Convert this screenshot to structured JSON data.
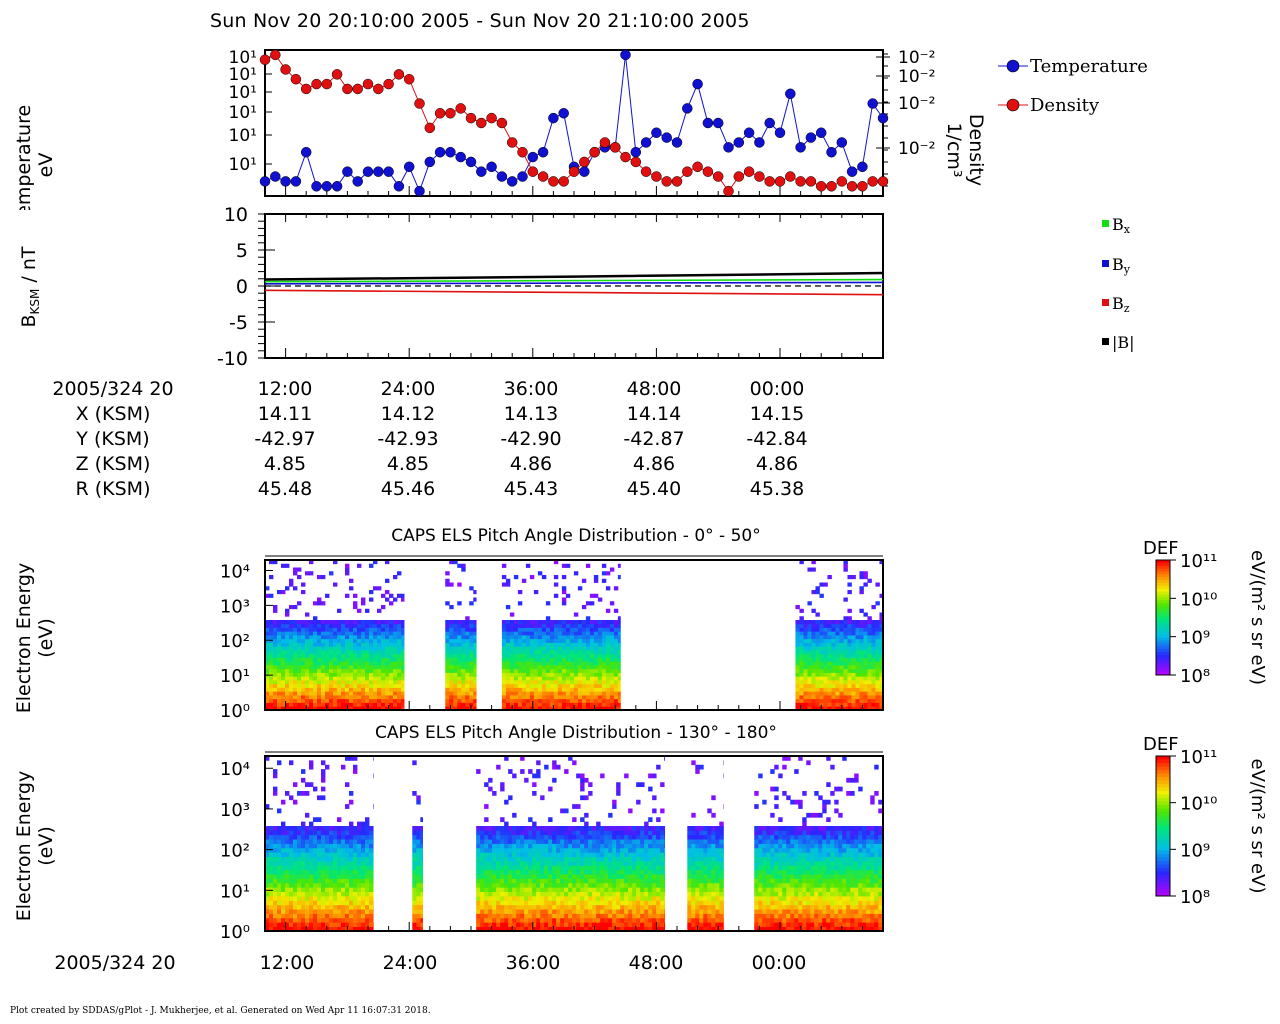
{
  "header": {
    "title": "Sun Nov 20 20:10:00 2005 - Sun Nov 20 21:10:00 2005"
  },
  "panels": {
    "moments": {
      "ylabel_line1": "Temperature",
      "ylabel_line2": "eV",
      "y2label_line1": "Density",
      "y2label_line2": "1/cm³",
      "left_ticks": [
        "10¹",
        "10¹",
        "10¹",
        "10¹",
        "10¹",
        "10¹"
      ],
      "right_ticks": [
        "10⁻²",
        "10⁻²",
        "10⁻²",
        "10⁻²"
      ],
      "legend": [
        {
          "label": "Temperature",
          "color": "#1010d0"
        },
        {
          "label": "Density",
          "color": "#e01010"
        }
      ]
    },
    "magnetic": {
      "ylabel": "B",
      "ylabel_sub": "KSM",
      "ylabel_unit": " / nT",
      "ticks": [
        "10",
        "5",
        "0",
        "-5",
        "-10"
      ],
      "legend": [
        {
          "label": "B",
          "sub": "x",
          "color": "#10e010"
        },
        {
          "label": "B",
          "sub": "y",
          "color": "#1010d0"
        },
        {
          "label": "B",
          "sub": "z",
          "color": "#e01010"
        },
        {
          "label": "|B|",
          "sub": "",
          "color": "#000000"
        }
      ]
    },
    "spec1": {
      "title": "CAPS ELS Pitch Angle Distribution - 0° - 50°",
      "ylabel_line1": "Electron Energy",
      "ylabel_line2": "(eV)",
      "ticks": [
        "10⁴",
        "10³",
        "10²",
        "10¹",
        "10⁰"
      ],
      "cbar_title": "DEF",
      "cbar_unit": "eV/(m² s sr eV)",
      "cbar_ticks": [
        "10¹¹",
        "10¹⁰",
        "10⁹",
        "10⁸"
      ]
    },
    "spec2": {
      "title": "CAPS ELS Pitch Angle Distribution - 130° - 180°",
      "ylabel_line1": "Electron Energy",
      "ylabel_line2": "(eV)",
      "ticks": [
        "10⁴",
        "10³",
        "10²",
        "10¹",
        "10⁰"
      ],
      "cbar_title": "DEF",
      "cbar_unit": "eV/(m² s sr eV)",
      "cbar_ticks": [
        "10¹¹",
        "10¹⁰",
        "10⁹",
        "10⁸"
      ]
    }
  },
  "ephemeris": {
    "rows": [
      {
        "label": "2005/324 20",
        "values": [
          "12:00",
          "24:00",
          "36:00",
          "48:00",
          "00:00"
        ]
      },
      {
        "label": "X (KSM)",
        "values": [
          "14.11",
          "14.12",
          "14.13",
          "14.14",
          "14.15"
        ]
      },
      {
        "label": "Y (KSM)",
        "values": [
          "-42.97",
          "-42.93",
          "-42.90",
          "-42.87",
          "-42.84"
        ]
      },
      {
        "label": "Z (KSM)",
        "values": [
          "4.85",
          "4.85",
          "4.86",
          "4.86",
          "4.86"
        ]
      },
      {
        "label": "R (KSM)",
        "values": [
          "45.48",
          "45.46",
          "45.43",
          "45.40",
          "45.38"
        ]
      }
    ]
  },
  "bottom_axis": {
    "label": "2005/324 20",
    "ticks": [
      "12:00",
      "24:00",
      "36:00",
      "48:00",
      "00:00"
    ]
  },
  "footer": "Plot created by SDDAS/gPlot - J. Mukherjee, et al.  Generated on Wed Apr 11 16:07:31 2018.",
  "chart_data": [
    {
      "type": "line",
      "x_unit": "minutes",
      "xlim": [
        10,
        70
      ],
      "series": [
        {
          "name": "Temperature",
          "color": "#1010d0",
          "x": [
            10,
            11,
            12,
            13,
            14,
            15,
            16,
            17,
            18,
            19,
            20,
            21,
            22,
            23,
            24,
            25,
            26,
            27,
            28,
            29,
            30,
            31,
            32,
            33,
            34,
            35,
            36,
            37,
            38,
            39,
            40,
            41,
            42,
            43,
            44,
            45,
            46,
            47,
            48,
            49,
            50,
            51,
            52,
            53,
            54,
            55,
            56,
            57,
            58,
            59,
            60,
            61,
            62,
            63,
            64,
            65,
            66,
            67,
            68,
            69,
            70
          ],
          "y": [
            8,
            9,
            8,
            8,
            14,
            7,
            7,
            7,
            10,
            8,
            10,
            10,
            10,
            7,
            11,
            6,
            12,
            14,
            14,
            13,
            12,
            10,
            11,
            9,
            8,
            9,
            13,
            14,
            21,
            22,
            11,
            10,
            14,
            15,
            15,
            34,
            14,
            16,
            18,
            17,
            16,
            23,
            28,
            20,
            20,
            15,
            16,
            18,
            16,
            20,
            18,
            26,
            15,
            17,
            18,
            14,
            16,
            10,
            11,
            24,
            21
          ]
        },
        {
          "name": "Density",
          "color": "#e01010",
          "x": [
            10,
            11,
            12,
            13,
            14,
            15,
            16,
            17,
            18,
            19,
            20,
            21,
            22,
            23,
            24,
            25,
            26,
            27,
            28,
            29,
            30,
            31,
            32,
            33,
            34,
            35,
            36,
            37,
            38,
            39,
            40,
            41,
            42,
            43,
            44,
            45,
            46,
            47,
            48,
            49,
            50,
            51,
            52,
            53,
            54,
            55,
            56,
            57,
            58,
            59,
            60,
            61,
            62,
            63,
            64,
            65,
            66,
            67,
            68,
            69,
            70
          ],
          "y": [
            33,
            34,
            31,
            29,
            27,
            28,
            28,
            30,
            27,
            27,
            28,
            27,
            28,
            30,
            29,
            24,
            19,
            22,
            22,
            23,
            21,
            20,
            21,
            20,
            16,
            14,
            10,
            9,
            8,
            8,
            10,
            12,
            14,
            16,
            15,
            13,
            12,
            10,
            9,
            8,
            8,
            10,
            11,
            10,
            9,
            6,
            9,
            10,
            9,
            8,
            8,
            9,
            8,
            8,
            7,
            7,
            8,
            7,
            7,
            8,
            8
          ]
        }
      ]
    },
    {
      "type": "line",
      "x_unit": "minutes",
      "xlim": [
        10,
        70
      ],
      "ylim": [
        -10,
        10
      ],
      "ylabel": "B_KSM / nT",
      "series": [
        {
          "name": "Bx",
          "color": "#10e010",
          "x": [
            10,
            70
          ],
          "y": [
            0.6,
            0.9
          ]
        },
        {
          "name": "By",
          "color": "#1010d0",
          "x": [
            10,
            70
          ],
          "y": [
            0.3,
            0.5
          ]
        },
        {
          "name": "Bz",
          "color": "#e01010",
          "x": [
            10,
            40,
            70
          ],
          "y": [
            -0.6,
            -0.9,
            -1.2
          ]
        },
        {
          "name": "|B|",
          "color": "#000000",
          "x": [
            10,
            40,
            70
          ],
          "y": [
            0.9,
            1.3,
            1.8
          ]
        }
      ]
    },
    {
      "type": "heatmap",
      "title": "CAPS ELS Pitch Angle Distribution - 0° - 50°",
      "y_scale": "log",
      "ylim_eV": [
        1,
        20000
      ],
      "colorbar_range": [
        "1e8",
        "1e11"
      ],
      "data_intervals_min": [
        [
          10,
          23.5
        ],
        [
          27.5,
          30.5
        ],
        [
          33,
          44.5
        ],
        [
          61.5,
          70
        ]
      ],
      "cutoff_eV": [
        300,
        300,
        300,
        300
      ]
    },
    {
      "type": "heatmap",
      "title": "CAPS ELS Pitch Angle Distribution - 130° - 180°",
      "y_scale": "log",
      "ylim_eV": [
        1,
        20000
      ],
      "colorbar_range": [
        "1e8",
        "1e11"
      ],
      "data_intervals_min": [
        [
          10,
          20.5
        ],
        [
          24.3,
          25.3
        ],
        [
          30.5,
          48.8
        ],
        [
          51,
          54.5
        ],
        [
          57.5,
          70
        ]
      ],
      "cutoff_eV": [
        300,
        300,
        300,
        300,
        300
      ]
    }
  ]
}
